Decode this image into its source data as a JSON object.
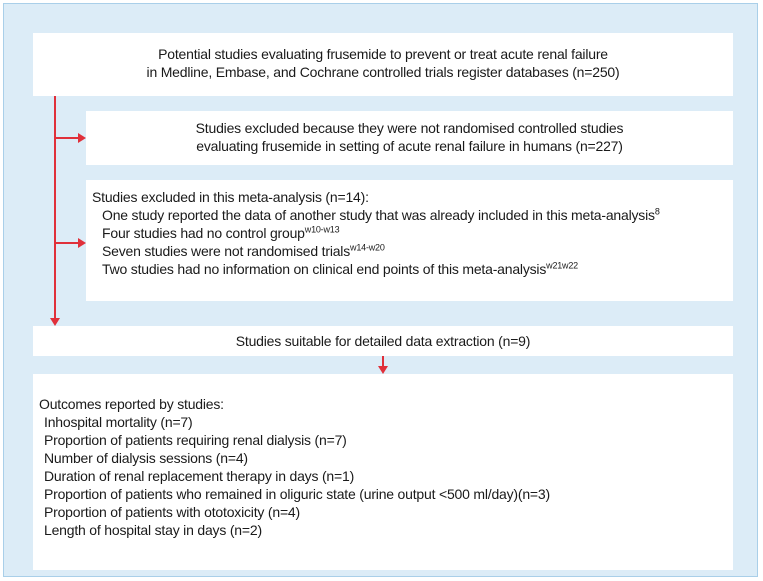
{
  "boxes": {
    "source": {
      "lines": [
        "Potential studies evaluating frusemide to prevent or treat acute renal failure",
        "in Medline, Embase, and Cochrane controlled trials register databases (n=250)"
      ]
    },
    "excluded_nonrandomised": {
      "lines": [
        "Studies excluded because they were not randomised controlled studies",
        "evaluating frusemide in setting of acute renal failure in humans (n=227)"
      ]
    },
    "excluded_meta": {
      "heading": "Studies excluded in this meta-analysis (n=14):",
      "items": [
        {
          "text": "One study reported the data of another study that was already included in this meta-analysis",
          "sup": "8"
        },
        {
          "text": "Four studies had no control group",
          "sup": "w10-w13"
        },
        {
          "text": "Seven studies were not randomised trials",
          "sup": "w14-w20"
        },
        {
          "text": "Two studies had no information on clinical end points of this meta-analysis",
          "sup": "w21w22"
        }
      ]
    },
    "suitable": {
      "text": "Studies suitable for detailed data extraction (n=9)"
    },
    "outcomes": {
      "heading": "Outcomes reported by studies:",
      "items": [
        "Inhospital mortality (n=7)",
        "Proportion of patients requiring renal dialysis (n=7)",
        "Number of dialysis sessions (n=4)",
        "Duration of renal replacement therapy in days (n=1)",
        "Proportion of patients who remained in oliguric state (urine output <500 ml/day)(n=3)",
        "Proportion of patients with ototoxicity (n=4)",
        "Length of hospital stay in days (n=2)"
      ]
    }
  }
}
